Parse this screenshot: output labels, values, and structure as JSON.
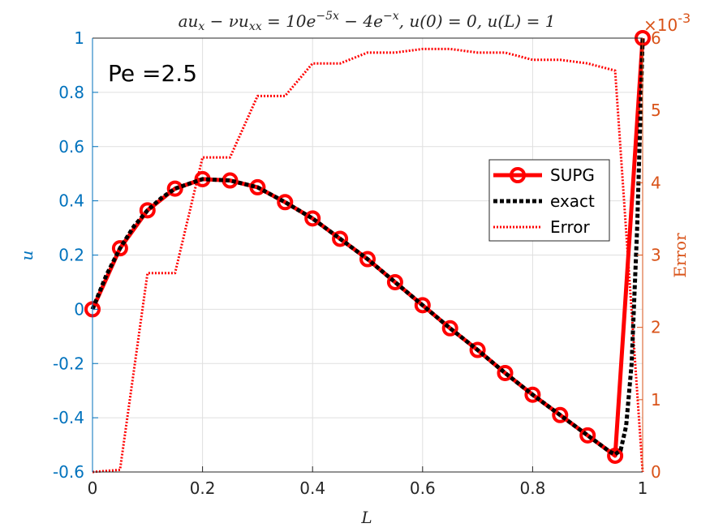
{
  "chart_data": {
    "type": "line",
    "title": "au_x − νu_xx = 10e^{−5x} − 4e^{−x}, u(0) = 0, u(L) = 1",
    "title_parts": {
      "lhs": "au",
      "lhs_sub1": "x",
      "minus_nu": " − νu",
      "lhs_sub2": "xx",
      "eq": " = 10e",
      "exp1": "−5x",
      "minus4": " − 4e",
      "exp2": "−x",
      "bc": ", u(0) = 0, u(L) = 1"
    },
    "xlabel": "L",
    "ylabel_left": "u",
    "ylabel_right": "Error",
    "right_axis_exponent": "×10",
    "right_axis_exponent_power": "-3",
    "annotation": "Pe =2.5",
    "xlim": [
      0,
      1
    ],
    "ylim_left": [
      -0.6,
      1
    ],
    "ylim_right": [
      0,
      0.006
    ],
    "x_ticks": [
      "0",
      "0.2",
      "0.4",
      "0.6",
      "0.8",
      "1"
    ],
    "y_left_ticks": [
      "-0.6",
      "-0.4",
      "-0.2",
      "0",
      "0.2",
      "0.4",
      "0.6",
      "0.8",
      "1"
    ],
    "y_right_ticks": [
      "0",
      "1",
      "2",
      "3",
      "4",
      "5",
      "6"
    ],
    "grid": true,
    "legend_position": "right-middle",
    "series": [
      {
        "name": "SUPG",
        "axis": "left",
        "color": "#ff0000",
        "style": "solid-circle-markers",
        "x": [
          0,
          0.05,
          0.1,
          0.15,
          0.2,
          0.25,
          0.3,
          0.35,
          0.4,
          0.45,
          0.5,
          0.55,
          0.6,
          0.65,
          0.7,
          0.75,
          0.8,
          0.85,
          0.9,
          0.95,
          1.0
        ],
        "y": [
          0,
          0.225,
          0.365,
          0.445,
          0.48,
          0.475,
          0.45,
          0.395,
          0.335,
          0.26,
          0.185,
          0.1,
          0.015,
          -0.07,
          -0.15,
          -0.235,
          -0.315,
          -0.39,
          -0.465,
          -0.54,
          1.0
        ]
      },
      {
        "name": "exact",
        "axis": "left",
        "color": "#000000",
        "style": "dashed",
        "x": [
          0,
          0.025,
          0.05,
          0.075,
          0.1,
          0.125,
          0.15,
          0.2,
          0.25,
          0.3,
          0.35,
          0.4,
          0.45,
          0.5,
          0.55,
          0.6,
          0.65,
          0.7,
          0.75,
          0.8,
          0.85,
          0.9,
          0.94,
          0.95,
          0.96,
          0.97,
          0.98,
          0.99,
          1.0
        ],
        "y": [
          0,
          0.125,
          0.225,
          0.305,
          0.365,
          0.41,
          0.445,
          0.48,
          0.475,
          0.45,
          0.395,
          0.335,
          0.26,
          0.185,
          0.1,
          0.015,
          -0.07,
          -0.15,
          -0.235,
          -0.315,
          -0.39,
          -0.465,
          -0.525,
          -0.535,
          -0.52,
          -0.43,
          -0.2,
          0.3,
          1.0
        ]
      },
      {
        "name": "Error",
        "axis": "right",
        "color": "#ff0000",
        "style": "dotted",
        "x": [
          0,
          0.05,
          0.1,
          0.15,
          0.2,
          0.25,
          0.3,
          0.35,
          0.4,
          0.45,
          0.5,
          0.55,
          0.6,
          0.65,
          0.7,
          0.75,
          0.8,
          0.85,
          0.9,
          0.95,
          1.0
        ],
        "y": [
          0,
          3e-05,
          0.00275,
          0.00275,
          0.00435,
          0.00435,
          0.0052,
          0.0052,
          0.00565,
          0.00565,
          0.0058,
          0.0058,
          0.00585,
          0.00585,
          0.0058,
          0.0058,
          0.0057,
          0.0057,
          0.00565,
          0.00555,
          0
        ]
      }
    ]
  },
  "colors": {
    "left_axis": "#0072bd",
    "right_axis": "#d95319",
    "grid": "#dfdfdf",
    "frame": "#262626"
  }
}
